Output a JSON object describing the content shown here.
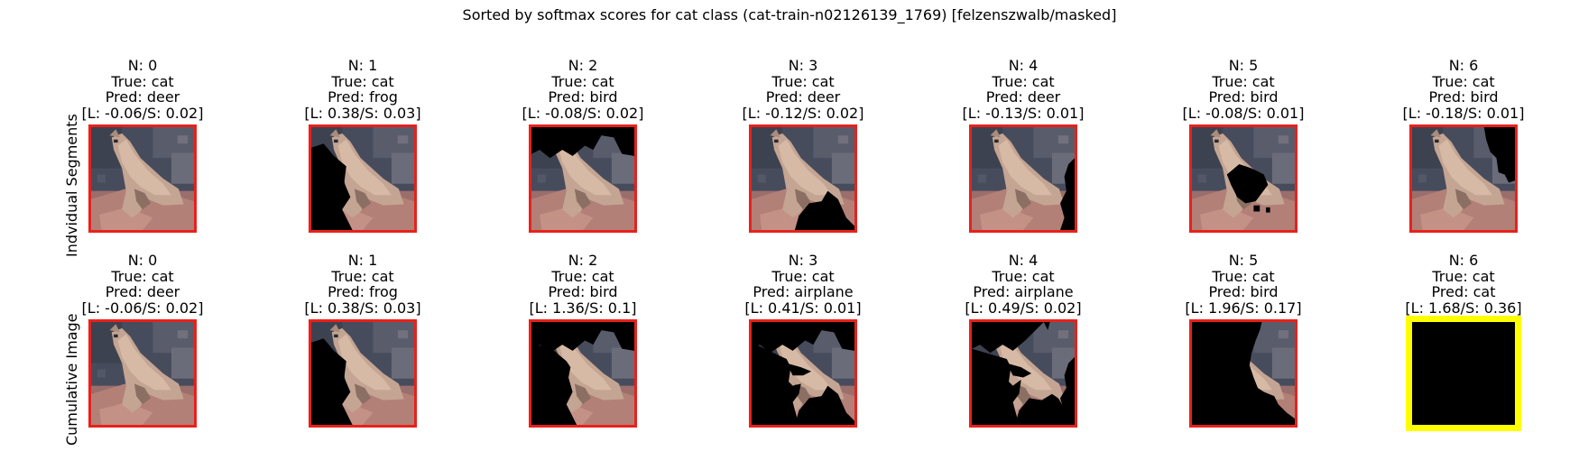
{
  "title": "Sorted by softmax scores for cat class (cat-train-n02126139_1769) [felzenszwalb/masked]",
  "row_labels": [
    "Indvidual Segments",
    "Cumulative Image"
  ],
  "colors": {
    "normal_border": "#e8211b",
    "highlight_border": "#ffff00",
    "mask": "#000000"
  },
  "rows": [
    {
      "name": "Indvidual Segments",
      "panels": [
        {
          "n": "N: 0",
          "true": "True: cat",
          "pred": "Pred: deer",
          "scores": "[L: -0.06/S: 0.02]",
          "mask": "none",
          "highlight": false
        },
        {
          "n": "N: 1",
          "true": "True: cat",
          "pred": "Pred: frog",
          "scores": "[L: 0.38/S: 0.03]",
          "mask": "seg1",
          "highlight": false
        },
        {
          "n": "N: 2",
          "true": "True: cat",
          "pred": "Pred: bird",
          "scores": "[L: -0.08/S: 0.02]",
          "mask": "seg2",
          "highlight": false
        },
        {
          "n": "N: 3",
          "true": "True: cat",
          "pred": "Pred: deer",
          "scores": "[L: -0.12/S: 0.02]",
          "mask": "seg3",
          "highlight": false
        },
        {
          "n": "N: 4",
          "true": "True: cat",
          "pred": "Pred: deer",
          "scores": "[L: -0.13/S: 0.01]",
          "mask": "seg4",
          "highlight": false
        },
        {
          "n": "N: 5",
          "true": "True: cat",
          "pred": "Pred: bird",
          "scores": "[L: -0.08/S: 0.01]",
          "mask": "seg5",
          "highlight": false
        },
        {
          "n": "N: 6",
          "true": "True: cat",
          "pred": "Pred: bird",
          "scores": "[L: -0.18/S: 0.01]",
          "mask": "seg6",
          "highlight": false
        }
      ]
    },
    {
      "name": "Cumulative Image",
      "panels": [
        {
          "n": "N: 0",
          "true": "True: cat",
          "pred": "Pred: deer",
          "scores": "[L: -0.06/S: 0.02]",
          "mask": "none",
          "highlight": false
        },
        {
          "n": "N: 1",
          "true": "True: cat",
          "pred": "Pred: frog",
          "scores": "[L: 0.38/S: 0.03]",
          "mask": "cum1",
          "highlight": false
        },
        {
          "n": "N: 2",
          "true": "True: cat",
          "pred": "Pred: bird",
          "scores": "[L: 1.36/S: 0.1]",
          "mask": "cum2",
          "highlight": false
        },
        {
          "n": "N: 3",
          "true": "True: cat",
          "pred": "Pred: airplane",
          "scores": "[L: 0.41/S: 0.01]",
          "mask": "cum3",
          "highlight": false
        },
        {
          "n": "N: 4",
          "true": "True: cat",
          "pred": "Pred: airplane",
          "scores": "[L: 0.49/S: 0.02]",
          "mask": "cum4",
          "highlight": false
        },
        {
          "n": "N: 5",
          "true": "True: cat",
          "pred": "Pred: bird",
          "scores": "[L: 1.96/S: 0.17]",
          "mask": "cum5",
          "highlight": false
        },
        {
          "n": "N: 6",
          "true": "True: cat",
          "pred": "Pred: cat",
          "scores": "[L: 1.68/S: 0.36]",
          "mask": "full",
          "highlight": true
        }
      ]
    }
  ]
}
